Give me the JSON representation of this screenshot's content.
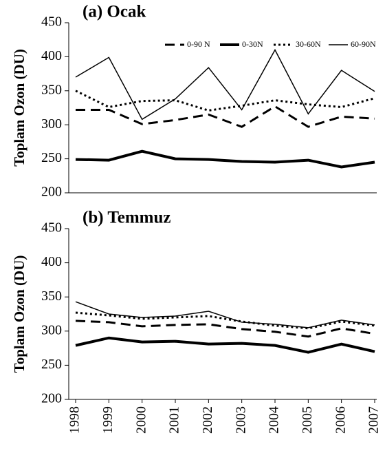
{
  "chart_data": [
    {
      "type": "line",
      "title": "(a) Ocak",
      "y_label": "Toplam Ozon (DU)",
      "ylim": [
        200,
        450
      ],
      "yticks": [
        200,
        250,
        300,
        350,
        400,
        450
      ],
      "legend": "upper right",
      "series": [
        {
          "name": "0-90 N",
          "color": "#000",
          "style": "dashed",
          "width": 3,
          "values": [
            322,
            322,
            301,
            307,
            315,
            297,
            327,
            297,
            312,
            309
          ]
        },
        {
          "name": "0-30N",
          "color": "#000",
          "style": "solid",
          "width": 4,
          "values": [
            249,
            248,
            261,
            250,
            249,
            246,
            245,
            248,
            238,
            245
          ]
        },
        {
          "name": "30-60N",
          "color": "#000",
          "style": "dotted",
          "width": 3,
          "values": [
            350,
            326,
            335,
            336,
            321,
            328,
            336,
            330,
            326,
            339
          ]
        },
        {
          "name": "60-90N",
          "color": "#000",
          "style": "solid",
          "width": 1.5,
          "values": [
            370,
            399,
            308,
            338,
            384,
            322,
            410,
            316,
            380,
            349
          ]
        }
      ]
    },
    {
      "type": "line",
      "title": "(b) Temmuz",
      "y_label": "Toplam Ozon (DU)",
      "categories": [
        "1998",
        "1999",
        "2000",
        "2001",
        "2002",
        "2003",
        "2004",
        "2005",
        "2006",
        "2007"
      ],
      "ylim": [
        200,
        450
      ],
      "yticks": [
        200,
        250,
        300,
        350,
        400,
        450
      ],
      "series": [
        {
          "color": "#000",
          "style": "dashed",
          "width": 3,
          "values": [
            315,
            313,
            307,
            309,
            310,
            303,
            299,
            292,
            304,
            296
          ]
        },
        {
          "color": "#000",
          "style": "solid",
          "width": 4,
          "values": [
            279,
            290,
            284,
            285,
            281,
            282,
            279,
            269,
            281,
            270
          ]
        },
        {
          "color": "#000",
          "style": "dotted",
          "width": 3,
          "values": [
            327,
            323,
            318,
            320,
            322,
            314,
            308,
            304,
            314,
            308
          ]
        },
        {
          "color": "#000",
          "style": "solid",
          "width": 1.5,
          "values": [
            343,
            325,
            320,
            322,
            329,
            313,
            310,
            305,
            316,
            309
          ]
        }
      ]
    }
  ]
}
